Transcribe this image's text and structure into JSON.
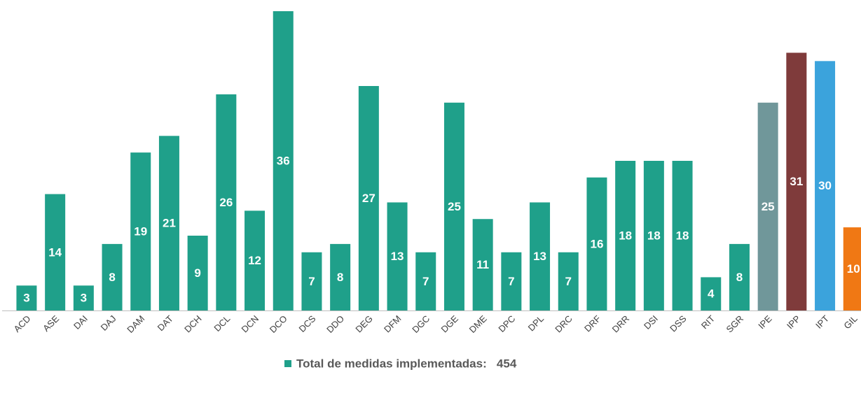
{
  "chart_data": {
    "type": "bar",
    "categories": [
      "ACD",
      "ASE",
      "DAI",
      "DAJ",
      "DAM",
      "DAT",
      "DCH",
      "DCL",
      "DCN",
      "DCO",
      "DCS",
      "DDO",
      "DEG",
      "DFM",
      "DGC",
      "DGE",
      "DME",
      "DPC",
      "DPL",
      "DRC",
      "DRF",
      "DRR",
      "DSI",
      "DSS",
      "RIT",
      "SGR",
      "IPE",
      "IPP",
      "IPT",
      "GIL"
    ],
    "series": [
      {
        "name": "Total de medidas implementadas:   454",
        "color": "#1fa08a",
        "colors": [
          "#1fa08a",
          "#1fa08a",
          "#1fa08a",
          "#1fa08a",
          "#1fa08a",
          "#1fa08a",
          "#1fa08a",
          "#1fa08a",
          "#1fa08a",
          "#1fa08a",
          "#1fa08a",
          "#1fa08a",
          "#1fa08a",
          "#1fa08a",
          "#1fa08a",
          "#1fa08a",
          "#1fa08a",
          "#1fa08a",
          "#1fa08a",
          "#1fa08a",
          "#1fa08a",
          "#1fa08a",
          "#1fa08a",
          "#1fa08a",
          "#1fa08a",
          "#1fa08a",
          "#70979a",
          "#7f3b3b",
          "#3ba3dc",
          "#f07814"
        ],
        "values": [
          3,
          14,
          3,
          8,
          19,
          21,
          9,
          26,
          12,
          36,
          7,
          8,
          27,
          13,
          7,
          25,
          11,
          7,
          13,
          7,
          16,
          18,
          18,
          18,
          4,
          8,
          25,
          31,
          30,
          10
        ]
      }
    ],
    "legend": "bottom"
  }
}
